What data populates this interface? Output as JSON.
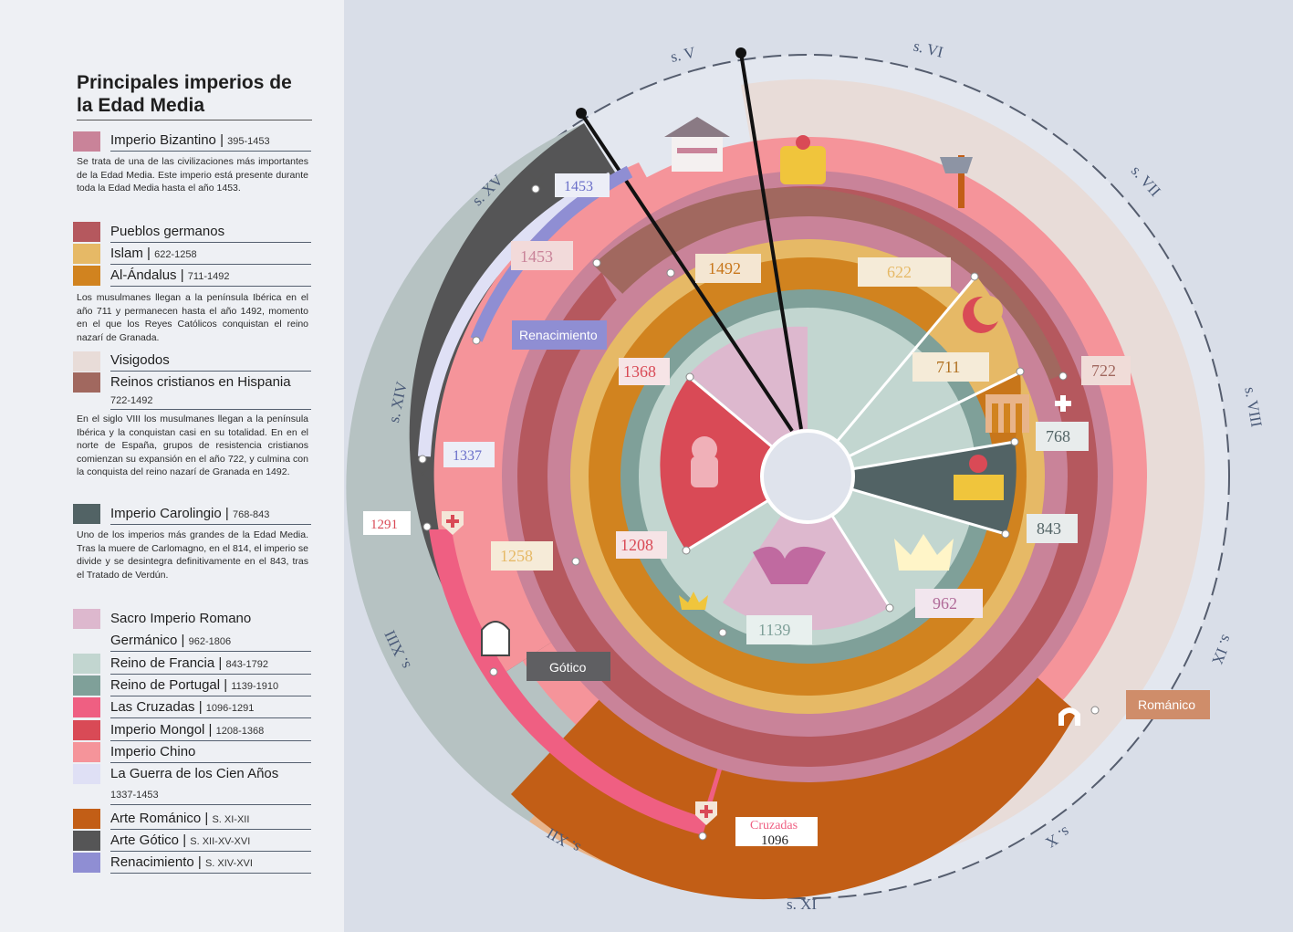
{
  "title": "Principales imperios de la Edad Media",
  "legend": {
    "bizantino": {
      "name": "Imperio Bizantino",
      "range": "395-1453",
      "color": "#c98399",
      "desc": "Se trata de una de las civilizaciones más importantes de la Edad Media. Este imperio está presente durante toda la Edad Media hasta el año 1453."
    },
    "germanos": {
      "name": "Pueblos germanos",
      "color": "#b5585e"
    },
    "islam": {
      "name": "Islam",
      "range": "622-1258",
      "color": "#e6b966"
    },
    "alandalus": {
      "name": "Al-Ándalus",
      "range": "711-1492",
      "color": "#d1831f",
      "desc": "Los musulmanes llegan a la península Ibérica en el año 711 y permanecen hasta el año 1492, momento en el que los Reyes Católicos conquistan el reino nazarí de Granada."
    },
    "visigodos": {
      "name": "Visigodos",
      "color": "#e8dcd8"
    },
    "hispania": {
      "name": "Reinos cristianos en Hispania",
      "range": "722-1492",
      "color": "#a1685f",
      "desc": "En el siglo VIII los musulmanes llegan a la península Ibérica y la conquistan casi en su totalidad. En en el norte de España, grupos de resistencia cristianos comienzan su expansión en el año 722, y culmina con la conquista del reino nazarí de Granada en 1492."
    },
    "carolingio": {
      "name": "Imperio Carolingio",
      "range": "768-843",
      "color": "#526365",
      "desc": "Uno de los imperios más grandes de la Edad Media. Tras la muere de Carlomagno, en el 814, el imperio se divide y se desintegra definitivamente en el 843, tras el Tratado de Verdún."
    },
    "sacro_a": {
      "name": "Sacro Imperio Romano",
      "color": "#ddb8ce"
    },
    "sacro_b": {
      "name": "Germánico",
      "range": "962-1806"
    },
    "francia": {
      "name": "Reino de Francia",
      "range": "843-1792",
      "color": "#c2d6d0"
    },
    "portugal": {
      "name": "Reino de Portugal",
      "range": " 1139-1910",
      "color": "#7fa099"
    },
    "cruzadas": {
      "name": "Las Cruzadas",
      "range": "1096-1291",
      "color": "#ef5f82"
    },
    "mongol": {
      "name": "Imperio Mongol",
      "range": "1208-1368",
      "color": "#d94a56"
    },
    "chino": {
      "name": "Imperio Chino",
      "color": "#f5949a"
    },
    "cien": {
      "name": "La Guerra de los Cien Años",
      "range": "1337-1453",
      "color": "#dfe0f5"
    },
    "romanico": {
      "name": "Arte Románico",
      "range": "S. XI-XII",
      "color": "#c25e16"
    },
    "gotico": {
      "name": "Arte Gótico",
      "range": "S. XII-XV-XVI",
      "color": "#555556"
    },
    "renacimiento": {
      "name": "Renacimiento",
      "range": "S. XIV-XVI",
      "color": "#8f8ed3"
    }
  },
  "centuries": [
    "s. V",
    "s. VI",
    "s. VII",
    "s. VIII",
    "s. IX",
    "s. X",
    "s. XI",
    "s. XII",
    "s. XIII",
    "s. XIV",
    "s. XV"
  ],
  "year_labels": {
    "y1453a": "1453",
    "y1453b": "1453",
    "y1492": "1492",
    "y622": "622",
    "y711": "711",
    "y722": "722",
    "y768": "768",
    "y843": "843",
    "y962": "962",
    "y1139": "1139",
    "y1208": "1208",
    "y1258": "1258",
    "y1368": "1368",
    "y1337": "1337",
    "y1291": "1291",
    "y1096": "1096"
  },
  "tags": {
    "renacimiento": "Renacimiento",
    "gotico": "Gótico",
    "romanico": "Románico",
    "cruzadas": "Cruzadas"
  }
}
